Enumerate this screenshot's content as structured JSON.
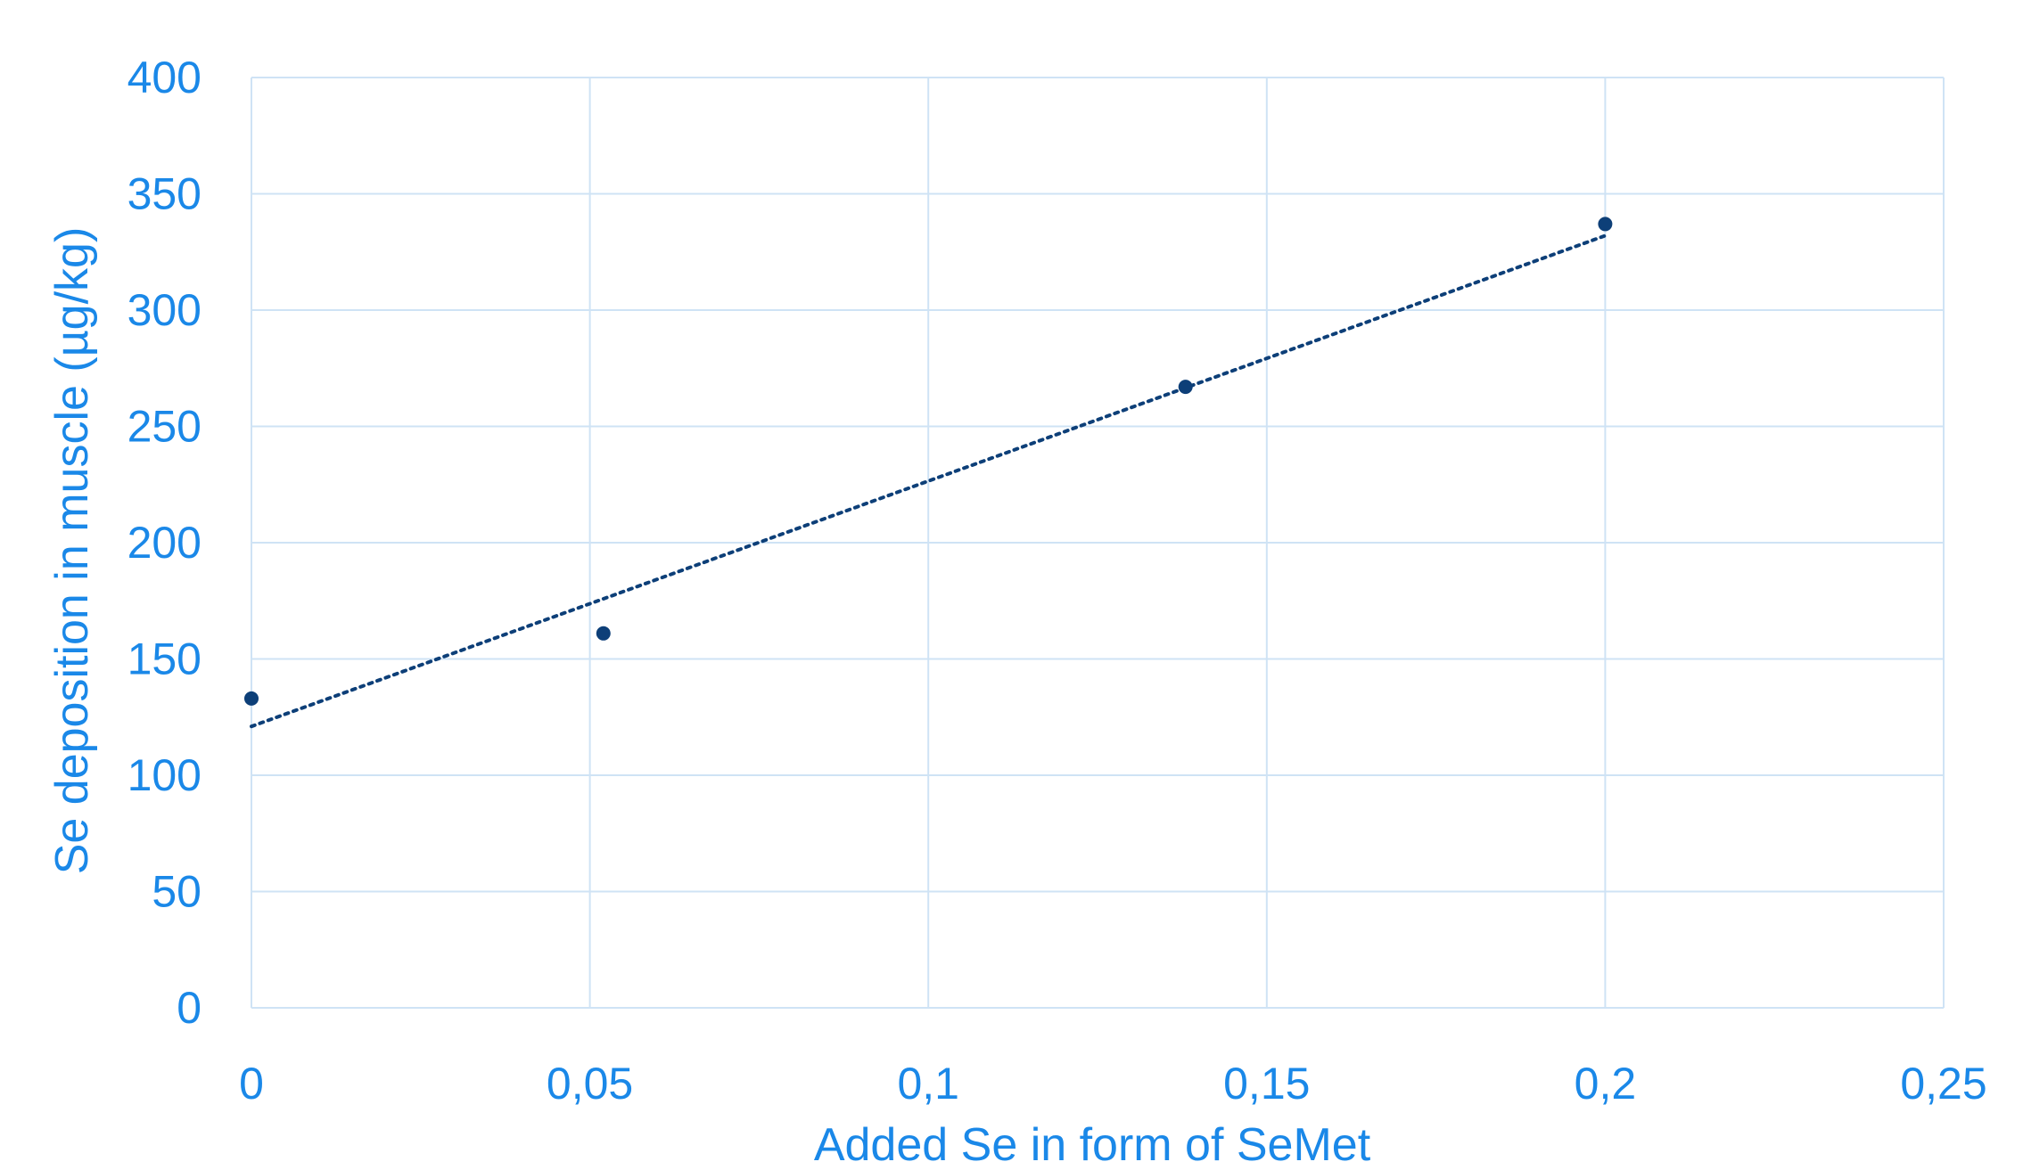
{
  "chart_data": {
    "type": "scatter",
    "title": "",
    "xlabel": "Added Se in form of SeMet",
    "ylabel": "Se deposition in muscle (µg/kg)",
    "xlim": [
      0,
      0.25
    ],
    "ylim": [
      0,
      400
    ],
    "x_ticks": [
      "0",
      "0,05",
      "0,1",
      "0,15",
      "0,2",
      "0,25"
    ],
    "y_ticks": [
      "0",
      "50",
      "100",
      "150",
      "200",
      "250",
      "300",
      "350",
      "400"
    ],
    "grid": true,
    "points": [
      {
        "x": 0,
        "y": 133
      },
      {
        "x": 0.052,
        "y": 161
      },
      {
        "x": 0.138,
        "y": 267
      },
      {
        "x": 0.2,
        "y": 337
      }
    ],
    "trendline": {
      "type": "linear",
      "x_start": 0,
      "y_start": 121,
      "x_end": 0.2,
      "y_end": 332
    },
    "colors": {
      "axis_text": "#1a88e8",
      "grid": "#cfe3f5",
      "marker": "#0d3f78",
      "trendline": "#0d3f78"
    }
  }
}
